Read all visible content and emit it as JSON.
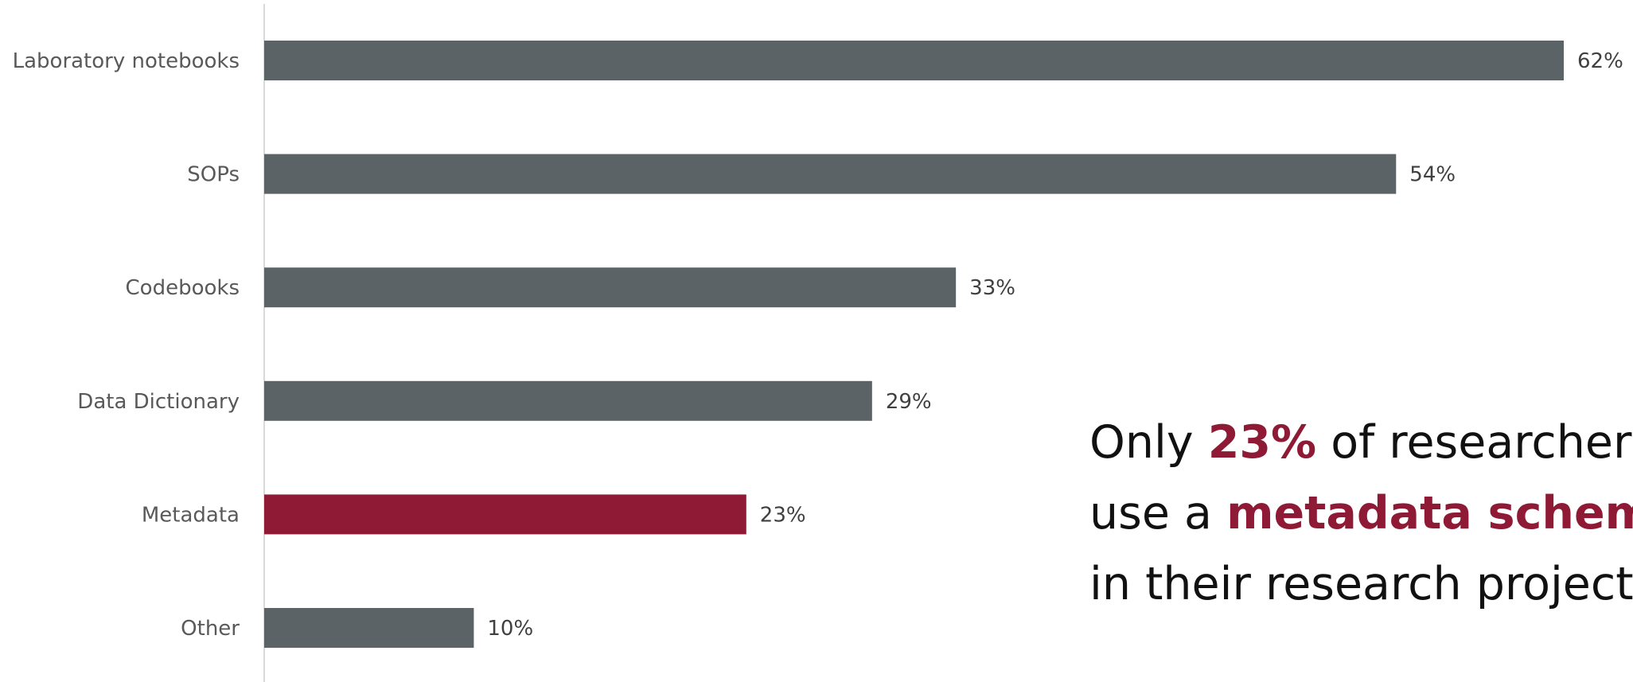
{
  "colors": {
    "bar": "#5b6366",
    "highlight": "#8e1a36",
    "axis": "#d9d9d9",
    "category_text": "#595959",
    "value_text": "#404040"
  },
  "chart_data": {
    "type": "bar",
    "orientation": "horizontal",
    "categories": [
      "Laboratory notebooks",
      "SOPs",
      "Codebooks",
      "Data Dictionary",
      "Metadata",
      "Other"
    ],
    "values": [
      62,
      54,
      33,
      29,
      23,
      10
    ],
    "value_labels": [
      "62%",
      "54%",
      "33%",
      "29%",
      "23%",
      "10%"
    ],
    "highlight_category": "Metadata",
    "xlim": [
      0,
      62
    ],
    "grid": false,
    "title": "",
    "xlabel": "",
    "ylabel": ""
  },
  "callout": {
    "line1_pre": "Only ",
    "line1_emph": "23%",
    "line1_post": " of researchers",
    "line2_pre": "use a ",
    "line2_emph": "metadata schema",
    "line3": "in their research projects."
  }
}
